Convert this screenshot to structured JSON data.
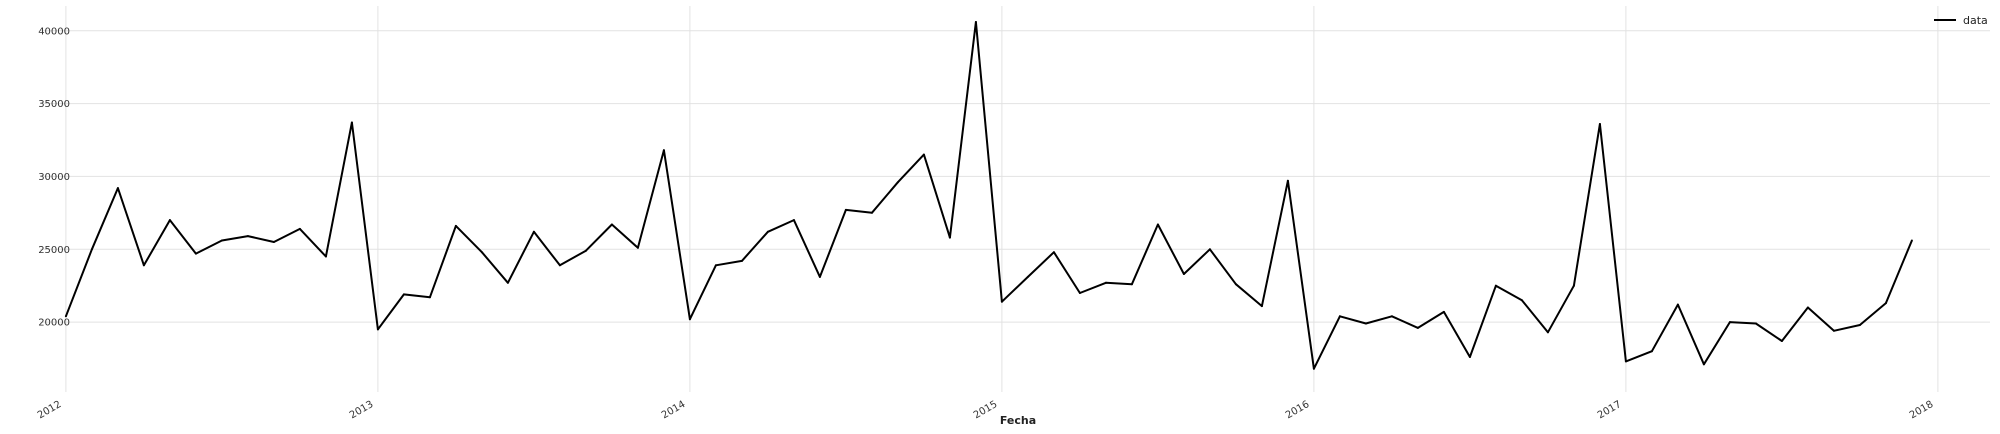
{
  "chart_data": {
    "type": "line",
    "xlabel": "Fecha",
    "ylabel": "",
    "title": "",
    "grid": true,
    "legend_placement": "top-right",
    "line_color": "#000000",
    "xlim": [
      2011.917,
      2018.167
    ],
    "ylim": [
      15200,
      41700
    ],
    "x_ticks": [
      2012,
      2013,
      2014,
      2015,
      2016,
      2017,
      2018
    ],
    "x_tick_labels": [
      "2012",
      "2013",
      "2014",
      "2015",
      "2016",
      "2017",
      "2018"
    ],
    "y_ticks": [
      20000,
      25000,
      30000,
      35000,
      40000
    ],
    "y_tick_labels": [
      "20000",
      "25000",
      "30000",
      "35000",
      "40000"
    ],
    "series": [
      {
        "name": "data",
        "x": [
          "2012-01",
          "2012-02",
          "2012-03",
          "2012-04",
          "2012-05",
          "2012-06",
          "2012-07",
          "2012-08",
          "2012-09",
          "2012-10",
          "2012-11",
          "2012-12",
          "2013-01",
          "2013-02",
          "2013-03",
          "2013-04",
          "2013-05",
          "2013-06",
          "2013-07",
          "2013-08",
          "2013-09",
          "2013-10",
          "2013-11",
          "2013-12",
          "2014-01",
          "2014-02",
          "2014-03",
          "2014-04",
          "2014-05",
          "2014-06",
          "2014-07",
          "2014-08",
          "2014-09",
          "2014-10",
          "2014-11",
          "2014-12",
          "2015-01",
          "2015-02",
          "2015-03",
          "2015-04",
          "2015-05",
          "2015-06",
          "2015-07",
          "2015-08",
          "2015-09",
          "2015-10",
          "2015-11",
          "2015-12",
          "2016-01",
          "2016-02",
          "2016-03",
          "2016-04",
          "2016-05",
          "2016-06",
          "2016-07",
          "2016-08",
          "2016-09",
          "2016-10",
          "2016-11",
          "2016-12",
          "2017-01",
          "2017-02",
          "2017-03",
          "2017-04",
          "2017-05",
          "2017-06",
          "2017-07",
          "2017-08",
          "2017-09",
          "2017-10",
          "2017-11",
          "2017-12"
        ],
        "y": [
          20400,
          25000,
          29200,
          23900,
          27000,
          24700,
          25600,
          25900,
          25500,
          26400,
          24500,
          33700,
          19500,
          21900,
          21700,
          26600,
          24800,
          22700,
          26200,
          23900,
          24900,
          26700,
          25100,
          31800,
          20200,
          23900,
          24200,
          26200,
          27000,
          23100,
          27700,
          27500,
          29600,
          31500,
          25800,
          40600,
          21400,
          23100,
          24800,
          22000,
          22700,
          22600,
          26700,
          23300,
          25000,
          22600,
          21100,
          29700,
          16800,
          20400,
          19900,
          20400,
          19600,
          20700,
          17600,
          22500,
          21500,
          19300,
          22500,
          33600,
          17300,
          18000,
          21200,
          17100,
          20000,
          19900,
          18700,
          21000,
          19400,
          19800,
          21300,
          25600
        ]
      }
    ]
  }
}
